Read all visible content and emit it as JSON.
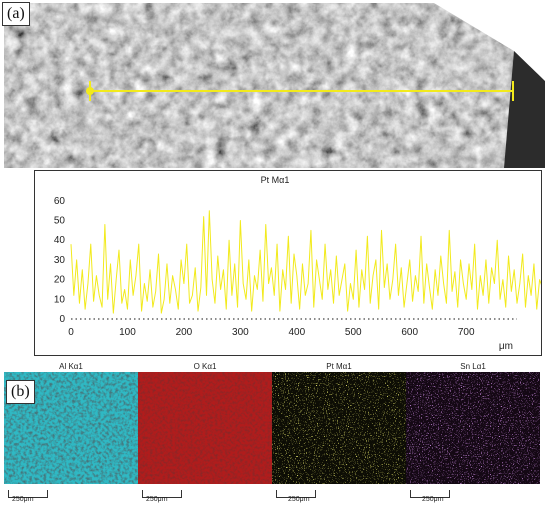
{
  "panel_a": {
    "label": "(a)",
    "image": "SEM micrograph of rough surface with yellow line-scan marker",
    "line_color": "#f2ea1c"
  },
  "chart_data": {
    "type": "line",
    "title": "Pt Mα1",
    "xlabel": "μm",
    "ylabel": "",
    "xlim": [
      0,
      790
    ],
    "ylim": [
      0,
      65
    ],
    "x_ticks": [
      0,
      100,
      200,
      300,
      400,
      500,
      600,
      700
    ],
    "y_ticks": [
      0,
      10,
      20,
      30,
      40,
      50,
      60
    ],
    "grid": false,
    "color": "#f2ea1c",
    "series": [
      {
        "name": "Pt Mα1",
        "x_step": 5,
        "values": [
          38,
          12,
          30,
          8,
          25,
          5,
          18,
          38,
          9,
          22,
          12,
          6,
          48,
          10,
          28,
          3,
          20,
          35,
          8,
          15,
          5,
          30,
          12,
          22,
          38,
          4,
          18,
          9,
          25,
          6,
          14,
          33,
          3,
          10,
          28,
          8,
          22,
          15,
          5,
          30,
          18,
          38,
          8,
          12,
          26,
          4,
          16,
          52,
          12,
          55,
          20,
          8,
          32,
          15,
          25,
          5,
          40,
          12,
          28,
          6,
          50,
          18,
          10,
          30,
          4,
          22,
          15,
          35,
          9,
          48,
          18,
          26,
          12,
          38,
          4,
          25,
          15,
          42,
          8,
          33,
          22,
          5,
          28,
          12,
          18,
          45,
          6,
          30,
          20,
          10,
          38,
          15,
          25,
          8,
          32,
          12,
          20,
          28,
          4,
          18,
          10,
          35,
          6,
          25,
          15,
          42,
          8,
          22,
          30,
          5,
          45,
          16,
          28,
          10,
          20,
          38,
          12,
          26,
          6,
          18,
          30,
          9,
          22,
          14,
          42,
          8,
          28,
          16,
          5,
          25,
          12,
          32,
          18,
          8,
          45,
          14,
          24,
          6,
          30,
          18,
          10,
          28,
          15,
          38,
          5,
          22,
          12,
          30,
          8,
          26,
          18,
          40,
          10,
          20,
          6,
          32,
          14,
          25,
          8,
          18,
          33,
          6,
          22,
          12,
          28,
          5,
          20,
          16,
          60,
          25,
          10,
          30,
          18,
          8,
          24,
          14,
          34,
          8,
          20,
          44,
          12,
          24,
          10,
          38,
          6,
          18,
          12,
          15
        ]
      }
    ]
  },
  "panel_b": {
    "label": "(b)",
    "maps": [
      {
        "title": "Al Kα1",
        "color": "#2fb9c4",
        "scalebar": "250μm"
      },
      {
        "title": "O Kα1",
        "color": "#b11c1c",
        "scalebar": "250μm"
      },
      {
        "title": "Pt Mα1",
        "color": "#d8d82a",
        "scalebar": "250μm"
      },
      {
        "title": "Sn Lα1",
        "color": "#b04be0",
        "scalebar": "250μm"
      }
    ]
  }
}
